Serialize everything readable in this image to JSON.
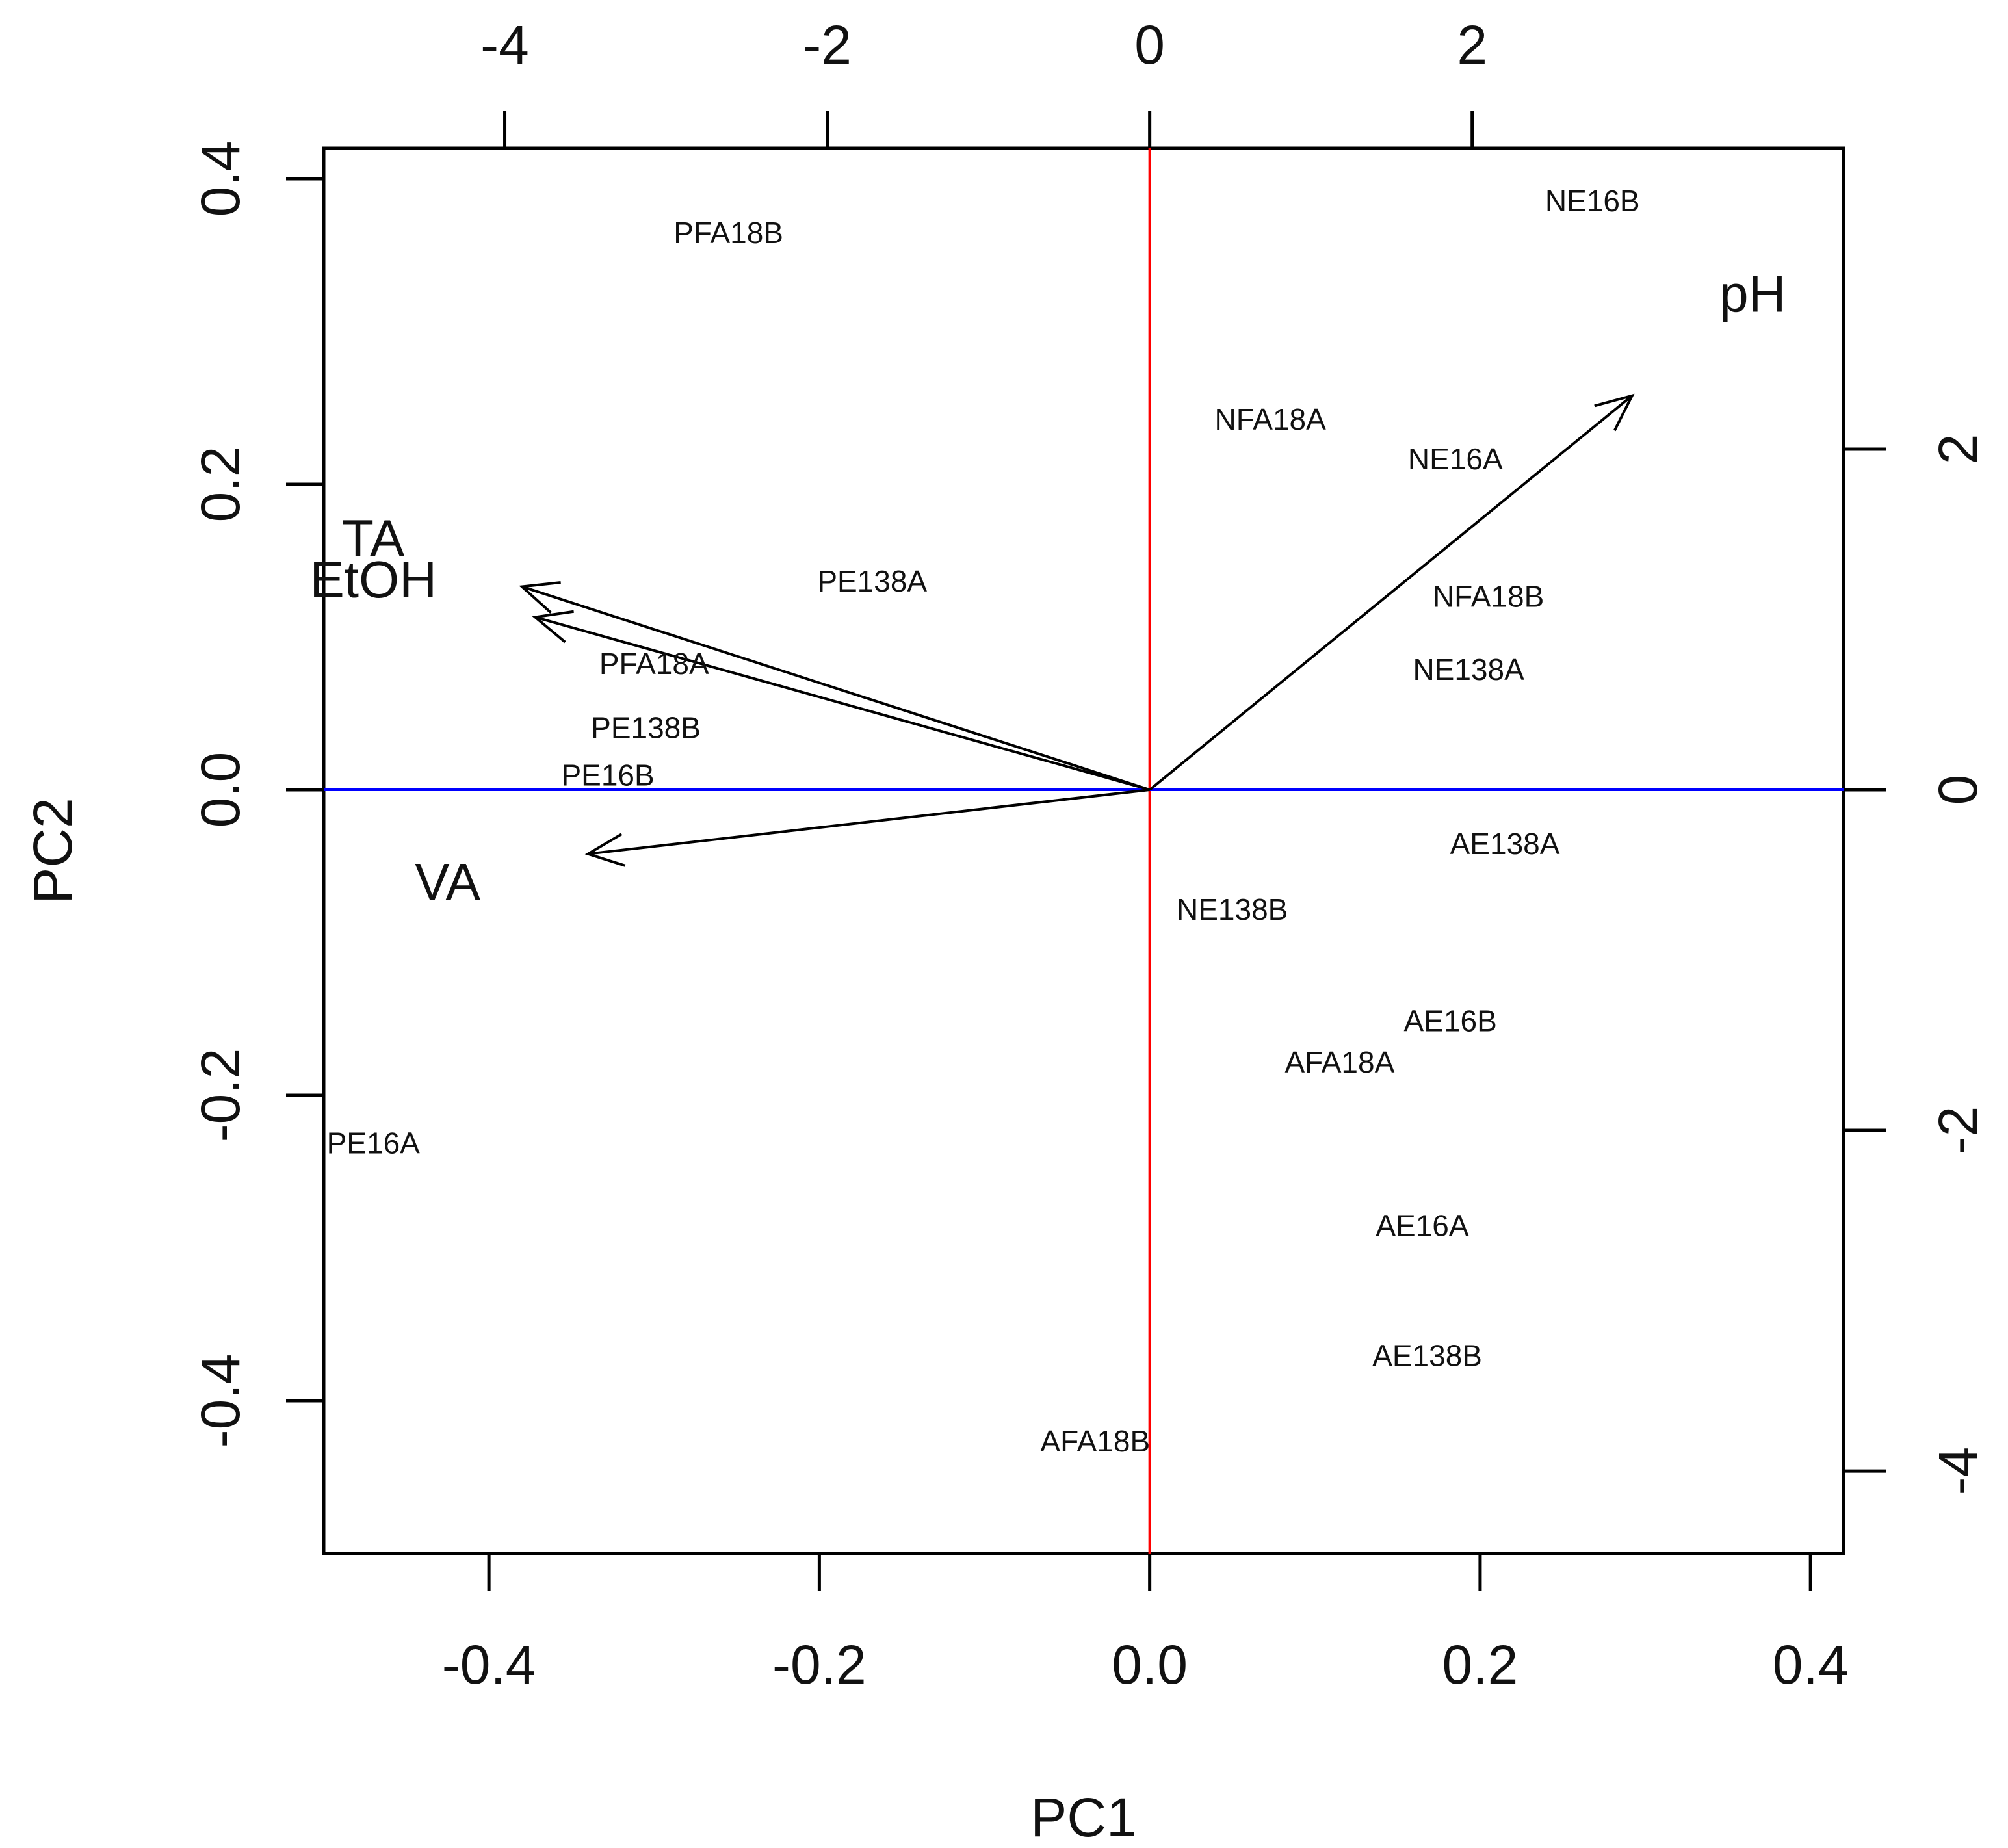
{
  "chart_data": {
    "type": "biplot",
    "xlabel": "PC1",
    "ylabel": "PC2",
    "xlim": [
      -0.5,
      0.42
    ],
    "ylim": [
      -0.5,
      0.42
    ],
    "x_ticks": [
      "-0.4",
      "-0.2",
      "0.0",
      "0.2",
      "0.4"
    ],
    "x_tick_values": [
      -0.4,
      -0.2,
      0.0,
      0.2,
      0.4
    ],
    "y_ticks": [
      "-0.4",
      "-0.2",
      "0.0",
      "0.2",
      "0.4"
    ],
    "y_tick_values": [
      -0.4,
      -0.2,
      0.0,
      0.2,
      0.4
    ],
    "top_axis": {
      "ticks": [
        "-4",
        "-2",
        "0",
        "2"
      ],
      "values": [
        -4,
        -2,
        0,
        2
      ],
      "scale": 0.0976
    },
    "right_axis": {
      "ticks": [
        "-4",
        "-2",
        "0",
        "2"
      ],
      "values": [
        -4,
        -2,
        0,
        2
      ],
      "scale": 0.1115
    },
    "zero_lines": {
      "vertical_color": "#ff0000",
      "horizontal_color": "#0000ff"
    },
    "observations": [
      {
        "label": "PFA18B",
        "x": -0.255,
        "y": 0.363
      },
      {
        "label": "NE16B",
        "x": 0.268,
        "y": 0.384
      },
      {
        "label": "NFA18A",
        "x": 0.073,
        "y": 0.241
      },
      {
        "label": "NE16A",
        "x": 0.185,
        "y": 0.215
      },
      {
        "label": "PE138A",
        "x": -0.168,
        "y": 0.135
      },
      {
        "label": "NFA18B",
        "x": 0.205,
        "y": 0.125
      },
      {
        "label": "NE138A",
        "x": 0.193,
        "y": 0.077
      },
      {
        "label": "PFA18A",
        "x": -0.3,
        "y": 0.081
      },
      {
        "label": "PE138B",
        "x": -0.305,
        "y": 0.039
      },
      {
        "label": "PE16B",
        "x": -0.328,
        "y": 0.008
      },
      {
        "label": "AE138A",
        "x": 0.215,
        "y": -0.037
      },
      {
        "label": "NE138B",
        "x": 0.05,
        "y": -0.08
      },
      {
        "label": "AE16B",
        "x": 0.182,
        "y": -0.153
      },
      {
        "label": "AFA18A",
        "x": 0.115,
        "y": -0.18
      },
      {
        "label": "PE16A",
        "x": -0.47,
        "y": -0.233
      },
      {
        "label": "AE16A",
        "x": 0.165,
        "y": -0.287
      },
      {
        "label": "AE138B",
        "x": 0.168,
        "y": -0.372
      },
      {
        "label": "AFA18B",
        "x": -0.033,
        "y": -0.428
      }
    ],
    "variables": [
      {
        "label": "pH",
        "x": 0.292,
        "y": 0.258,
        "label_x": 0.365,
        "label_y": 0.322
      },
      {
        "label": "TA",
        "x": -0.38,
        "y": 0.133,
        "label_x": -0.47,
        "label_y": 0.162
      },
      {
        "label": "EtOH",
        "x": -0.372,
        "y": 0.113,
        "label_x": -0.47,
        "label_y": 0.135
      },
      {
        "label": "VA",
        "x": -0.34,
        "y": -0.042,
        "label_x": -0.425,
        "label_y": -0.063
      }
    ],
    "colors": {
      "axes": "#000000",
      "arrows": "#000000",
      "text": "#111111"
    }
  }
}
